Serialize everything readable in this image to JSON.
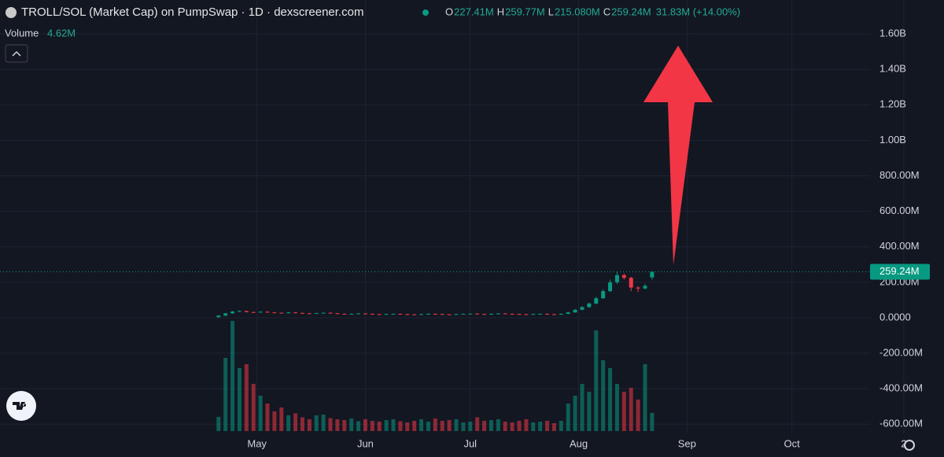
{
  "chart_data": {
    "type": "candlestick",
    "title": "TROLL/SOL (Market Cap) on PumpSwap · 1D · dexscreener.com",
    "ohlc_legend": [
      {
        "label": "O",
        "value": "227.41M"
      },
      {
        "label": "H",
        "value": "259.77M"
      },
      {
        "label": "L",
        "value": "215.080M"
      },
      {
        "label": "C",
        "value": "259.24M"
      }
    ],
    "change": "31.83M (+14.00%)",
    "volume_label": "Volume",
    "volume_value": "4.62M",
    "last_price": {
      "value": 259.24,
      "label": "259.24M"
    },
    "up_color": "#089981",
    "down_color": "#f23645",
    "grid": true,
    "x": [
      0,
      2,
      4,
      6,
      8,
      10,
      12,
      14,
      16,
      18,
      20,
      22,
      24,
      26,
      28,
      30,
      32,
      34,
      36,
      38,
      40,
      42,
      44,
      46,
      48,
      50,
      52,
      54,
      56,
      58,
      60,
      62,
      64,
      66,
      68,
      70,
      72,
      74,
      76,
      78,
      80,
      82,
      84,
      86,
      88,
      90,
      92,
      94,
      96,
      98,
      100,
      102,
      104,
      106,
      108,
      110,
      112,
      114,
      116,
      118,
      120,
      122,
      124
    ],
    "xlim": [
      -62.5,
      185
    ],
    "xticks": [
      {
        "value": 11,
        "label": "May"
      },
      {
        "value": 42,
        "label": "Jun"
      },
      {
        "value": 72,
        "label": "Jul"
      },
      {
        "value": 103,
        "label": "Aug"
      },
      {
        "value": 134,
        "label": "Sep"
      },
      {
        "value": 164,
        "label": "Oct"
      },
      {
        "value": 196,
        "label": "2"
      }
    ],
    "ylim": [
      -785,
      1791
    ],
    "yticks": [
      {
        "value": 1600,
        "label": "1.60B"
      },
      {
        "value": 1400,
        "label": "1.40B"
      },
      {
        "value": 1200,
        "label": "1.20B"
      },
      {
        "value": 1000,
        "label": "1.00B"
      },
      {
        "value": 800,
        "label": "800.00M"
      },
      {
        "value": 600,
        "label": "600.00M"
      },
      {
        "value": 400,
        "label": "400.00M"
      },
      {
        "value": 200,
        "label": "200.00M"
      },
      {
        "value": 0,
        "label": "0.0000"
      },
      {
        "value": -200,
        "label": "-200.00M"
      },
      {
        "value": -400,
        "label": "-400.00M"
      },
      {
        "value": -600,
        "label": "-600.00M"
      }
    ],
    "open": [
      3,
      12,
      25,
      35,
      38,
      32,
      30,
      34,
      30,
      28,
      26,
      30,
      27,
      25,
      24,
      26,
      28,
      25,
      22,
      20,
      22,
      24,
      22,
      20,
      19,
      21,
      22,
      20,
      19,
      18,
      20,
      22,
      21,
      19,
      18,
      20,
      22,
      23,
      21,
      20,
      22,
      24,
      22,
      21,
      20,
      19,
      21,
      22,
      20,
      18,
      22,
      30,
      45,
      60,
      80,
      110,
      150,
      200,
      240,
      225,
      170,
      165,
      227.41
    ],
    "high": [
      14,
      27,
      38,
      41,
      40,
      34,
      36,
      36,
      32,
      30,
      32,
      32,
      29,
      27,
      28,
      30,
      30,
      27,
      24,
      24,
      26,
      26,
      24,
      22,
      23,
      24,
      24,
      22,
      21,
      22,
      24,
      24,
      23,
      21,
      22,
      24,
      25,
      25,
      23,
      24,
      26,
      26,
      24,
      23,
      22,
      23,
      24,
      24,
      22,
      24,
      33,
      48,
      65,
      86,
      118,
      160,
      215,
      262,
      250,
      230,
      178,
      190,
      259.77
    ],
    "low": [
      1,
      10,
      22,
      32,
      30,
      28,
      28,
      28,
      26,
      24,
      24,
      25,
      23,
      22,
      22,
      24,
      23,
      20,
      18,
      18,
      20,
      20,
      18,
      17,
      17,
      19,
      18,
      17,
      16,
      16,
      18,
      19,
      17,
      16,
      16,
      18,
      20,
      19,
      18,
      18,
      20,
      20,
      19,
      18,
      17,
      17,
      19,
      18,
      16,
      16,
      20,
      28,
      42,
      56,
      76,
      105,
      145,
      190,
      215,
      150,
      145,
      160,
      215.08
    ],
    "close": [
      12,
      25,
      35,
      38,
      32,
      30,
      34,
      30,
      28,
      26,
      30,
      27,
      25,
      24,
      26,
      28,
      25,
      22,
      20,
      22,
      24,
      22,
      20,
      19,
      21,
      22,
      20,
      19,
      18,
      20,
      22,
      21,
      19,
      18,
      20,
      22,
      23,
      21,
      20,
      22,
      24,
      22,
      21,
      20,
      19,
      21,
      22,
      20,
      18,
      22,
      30,
      45,
      60,
      80,
      110,
      150,
      200,
      240,
      225,
      170,
      165,
      180,
      259.24
    ],
    "volume": [
      3.6,
      18.6,
      28,
      16,
      17,
      12,
      9,
      7,
      5,
      6,
      4,
      4.5,
      3.5,
      3,
      4,
      4.2,
      3.3,
      3,
      2.8,
      3.2,
      2.5,
      3,
      2.6,
      2.4,
      2.8,
      3,
      2.5,
      2.2,
      2.6,
      3,
      2.4,
      3.2,
      2.6,
      2.8,
      3,
      2.2,
      2.4,
      3.5,
      2.6,
      2.8,
      3,
      2.4,
      2.2,
      2.6,
      3,
      2.2,
      2.4,
      2.6,
      2,
      2.6,
      7,
      9,
      12,
      10,
      25.6,
      18,
      16,
      12,
      10,
      11,
      8,
      17,
      4.62
    ],
    "volume_ylim": [
      0,
      40
    ]
  }
}
